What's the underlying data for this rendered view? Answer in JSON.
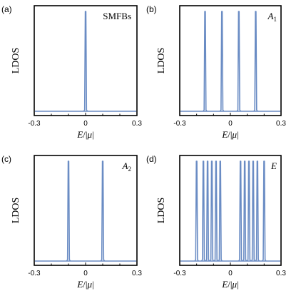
{
  "style": {
    "line_color": "#6a8cc4",
    "frame_color": "#000000",
    "background": "#ffffff"
  },
  "chart_data": [
    {
      "type": "line",
      "panel_label": "(a)",
      "annotation": "SMFBs",
      "xlabel": "E/|μ|",
      "ylabel": "LDOS",
      "xlim": [
        -0.3,
        0.3
      ],
      "xticks": [
        "-0.3",
        "0",
        "0.3"
      ],
      "baseline": 0.03,
      "peaks": [
        {
          "x": 0.0,
          "height": 1.0
        }
      ]
    },
    {
      "type": "line",
      "panel_label": "(b)",
      "annotation": "A1",
      "xlabel": "E/|μ|",
      "ylabel": "LDOS",
      "xlim": [
        -0.3,
        0.3
      ],
      "xticks": [
        "-0.3",
        "0",
        "0.3"
      ],
      "baseline": 0.03,
      "peaks": [
        {
          "x": -0.15,
          "height": 1.0
        },
        {
          "x": -0.05,
          "height": 1.0
        },
        {
          "x": 0.05,
          "height": 1.0
        },
        {
          "x": 0.15,
          "height": 1.0
        }
      ]
    },
    {
      "type": "line",
      "panel_label": "(c)",
      "annotation": "A2",
      "xlabel": "E/|μ|",
      "ylabel": "LDOS",
      "xlim": [
        -0.3,
        0.3
      ],
      "xticks": [
        "-0.3",
        "0",
        "0.3"
      ],
      "baseline": 0.03,
      "peaks": [
        {
          "x": -0.1,
          "height": 1.0
        },
        {
          "x": 0.1,
          "height": 1.0
        }
      ]
    },
    {
      "type": "line",
      "panel_label": "(d)",
      "annotation": "E",
      "xlabel": "E/|μ|",
      "ylabel": "LDOS",
      "xlim": [
        -0.3,
        0.3
      ],
      "xticks": [
        "-0.3",
        "0",
        "0.3"
      ],
      "baseline": 0.03,
      "peaks": [
        {
          "x": -0.2,
          "height": 1.0
        },
        {
          "x": -0.16,
          "height": 1.0
        },
        {
          "x": -0.135,
          "height": 1.0
        },
        {
          "x": -0.11,
          "height": 1.0
        },
        {
          "x": -0.085,
          "height": 1.0
        },
        {
          "x": -0.06,
          "height": 1.0
        },
        {
          "x": 0.06,
          "height": 1.0
        },
        {
          "x": 0.085,
          "height": 1.0
        },
        {
          "x": 0.11,
          "height": 1.0
        },
        {
          "x": 0.135,
          "height": 1.0
        },
        {
          "x": 0.16,
          "height": 1.0
        },
        {
          "x": 0.2,
          "height": 1.0
        }
      ]
    }
  ]
}
